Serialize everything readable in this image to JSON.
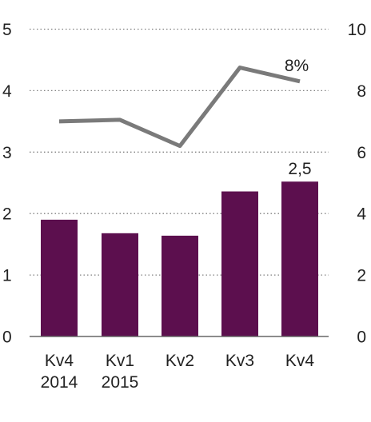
{
  "chart_data": {
    "type": "bar+line",
    "categories": [
      [
        "Kv4",
        "2014"
      ],
      [
        "Kv1",
        "2015"
      ],
      [
        "Kv2"
      ],
      [
        "Kv3"
      ],
      [
        "Kv4"
      ]
    ],
    "series": [
      {
        "type": "bar",
        "axis": "left",
        "values": [
          1.9,
          1.68,
          1.64,
          2.36,
          2.52
        ],
        "color": "#5c0f4e"
      },
      {
        "type": "line",
        "axis": "right",
        "values": [
          7.0,
          7.05,
          6.2,
          8.75,
          8.3
        ],
        "color": "#7a7a7a"
      }
    ],
    "left_axis": {
      "ticks": [
        "0",
        "1",
        "2",
        "3",
        "4",
        "5"
      ],
      "ylim": [
        0,
        5
      ]
    },
    "right_axis": {
      "ticks": [
        "0",
        "2",
        "4",
        "6",
        "8",
        "10"
      ],
      "ylim": [
        0,
        10
      ]
    },
    "grid": "dotted-horizontal",
    "data_labels": [
      {
        "series": 0,
        "index": 4,
        "text": "2,5"
      },
      {
        "series": 1,
        "index": 4,
        "text": "8%"
      }
    ],
    "colors": {
      "bar": "#5c0f4e",
      "line": "#7a7a7a",
      "grid": "#808080",
      "axis": "#666666",
      "text": "#222222"
    }
  }
}
